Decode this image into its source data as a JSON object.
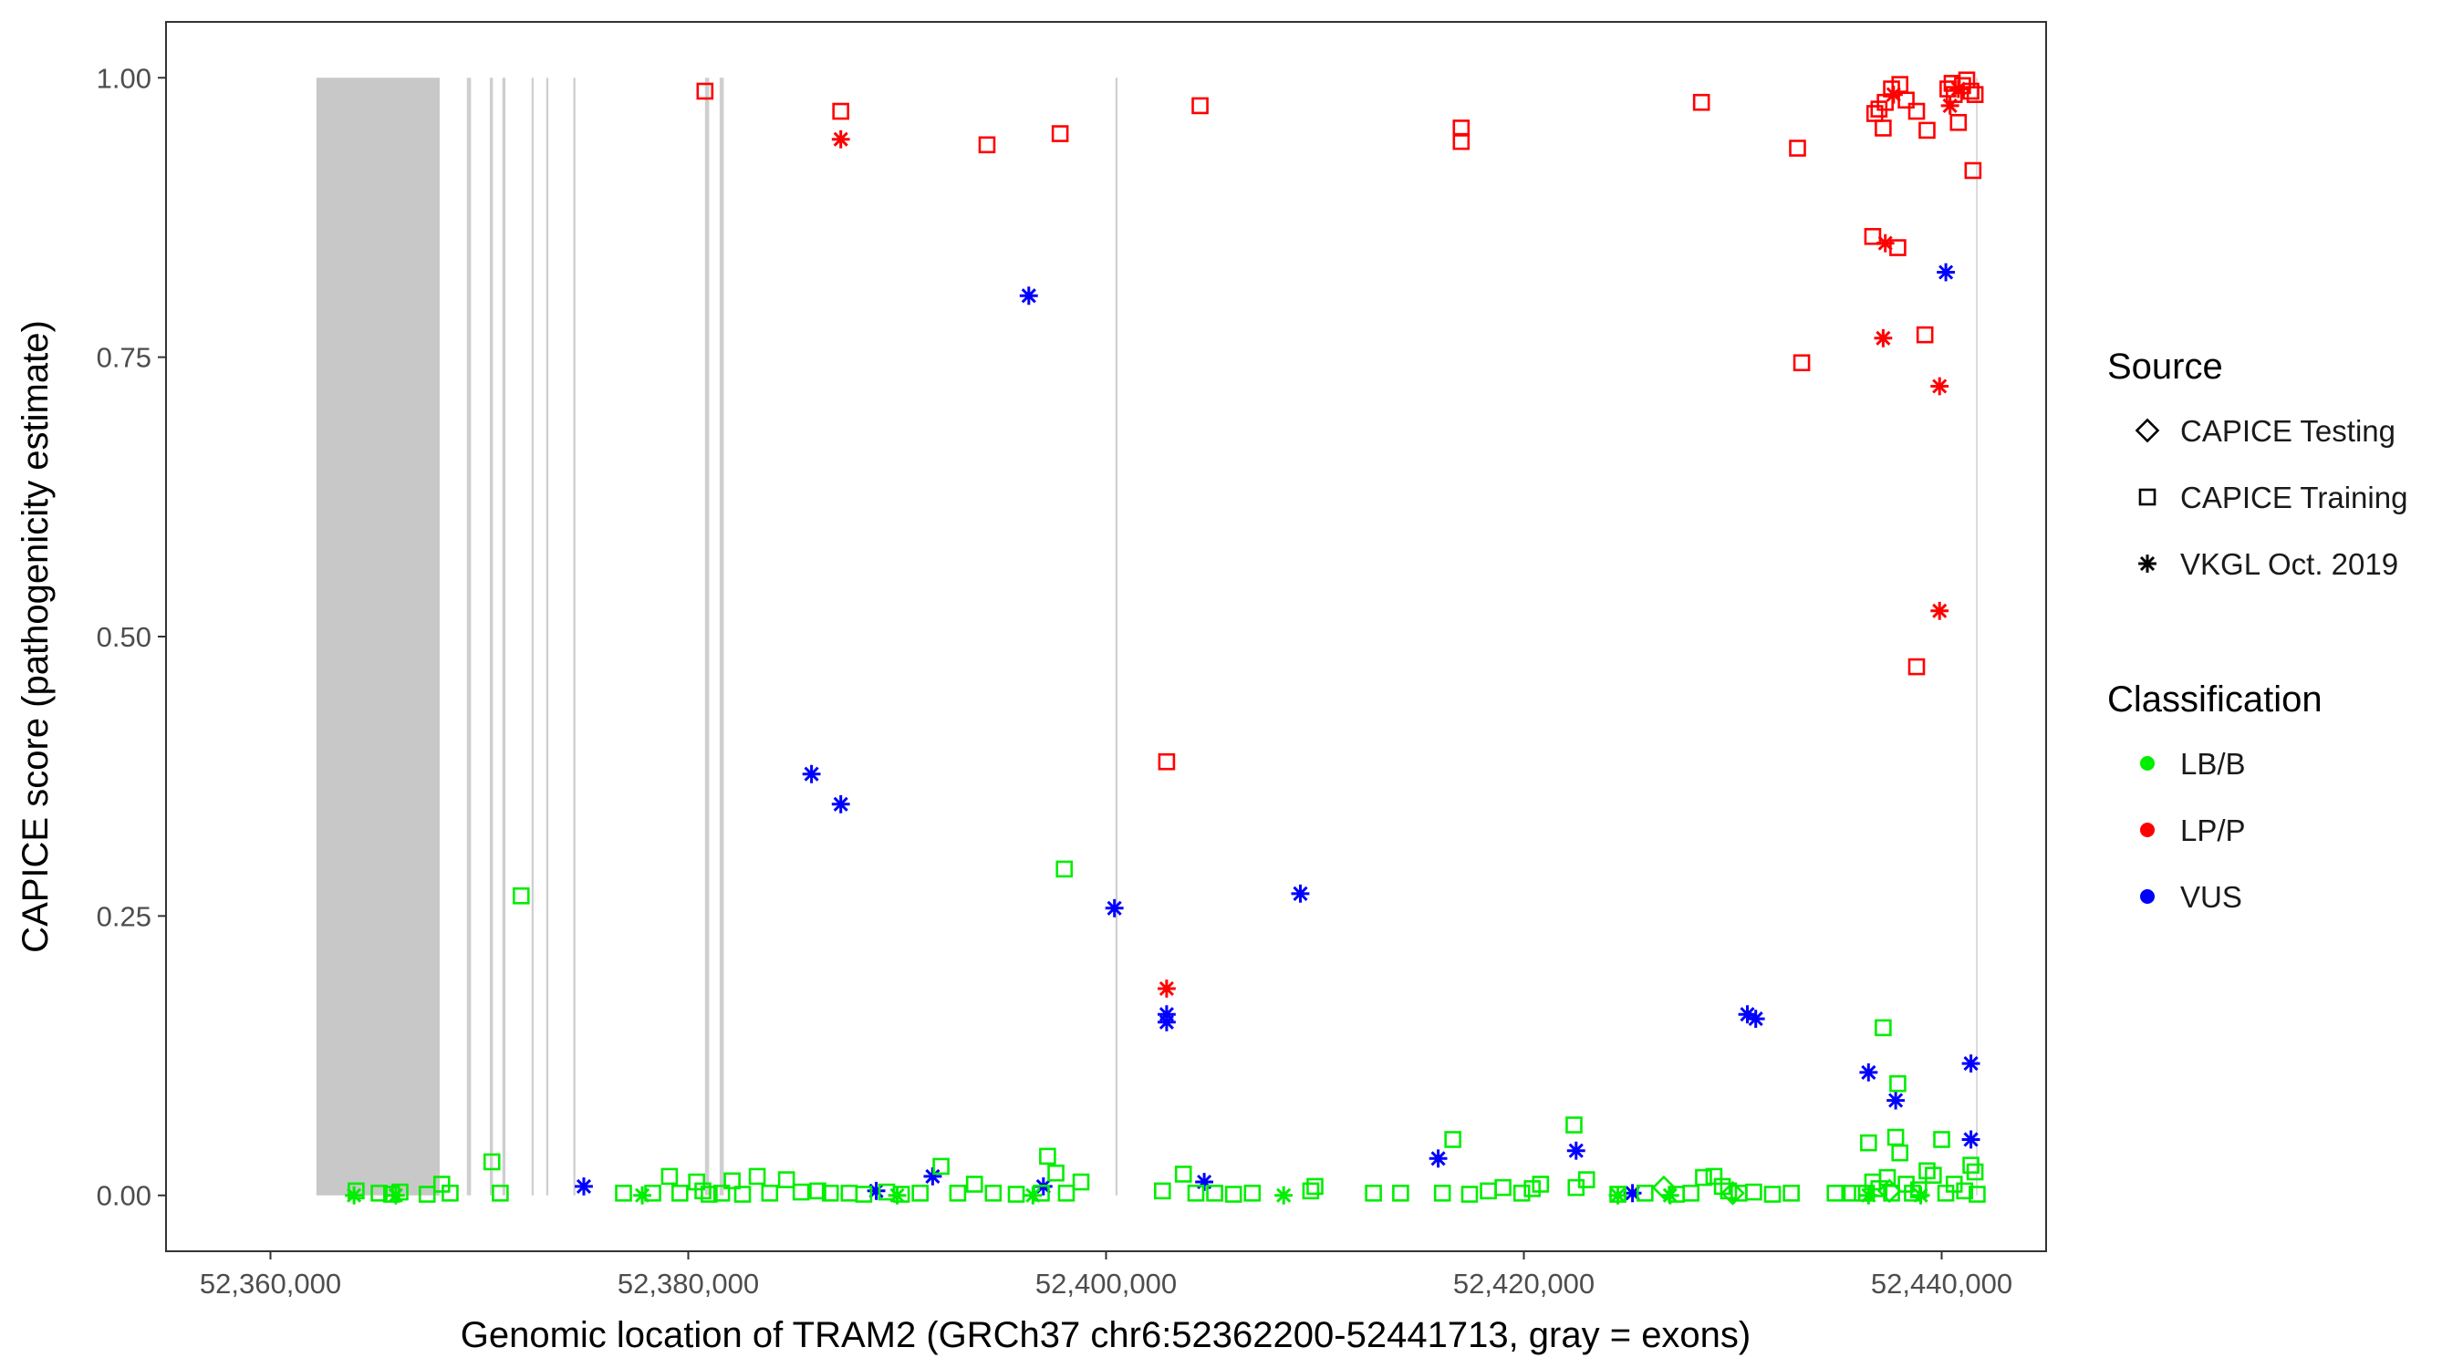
{
  "chart_data": {
    "type": "scatter",
    "title": "",
    "xlabel": "Genomic location of TRAM2 (GRCh37 chr6:52362200-52441713, gray = exons)",
    "ylabel": "CAPICE score (pathogenicity estimate)",
    "xlim": [
      52355000,
      52445000
    ],
    "ylim": [
      -0.05,
      1.05
    ],
    "x_ticks": [
      52360000,
      52380000,
      52400000,
      52420000,
      52440000
    ],
    "x_tick_labels": [
      "52,360,000",
      "52,380,000",
      "52,400,000",
      "52,420,000",
      "52,440,000"
    ],
    "y_ticks": [
      0,
      0.25,
      0.5,
      0.75,
      1
    ],
    "y_tick_labels": [
      "0.00",
      "0.25",
      "0.50",
      "0.75",
      "1.00"
    ],
    "exons": [
      [
        52362200,
        52368100
      ],
      [
        52369400,
        52369600
      ],
      [
        52370500,
        52370650
      ],
      [
        52371100,
        52371250
      ],
      [
        52372500,
        52372600
      ],
      [
        52373200,
        52373300
      ],
      [
        52374500,
        52374600
      ],
      [
        52380800,
        52381000
      ],
      [
        52381500,
        52381700
      ],
      [
        52400450,
        52400550
      ],
      [
        52441650,
        52441713
      ]
    ],
    "classification_colors": {
      "LB/B": "#00ee00",
      "LP/P": "#ff0000",
      "VUS": "#0000ff"
    },
    "legend_position": "right",
    "legend": {
      "source_title": "Source",
      "source_items": [
        {
          "label": "CAPICE Testing",
          "shape": "diamond"
        },
        {
          "label": "CAPICE Training",
          "shape": "square"
        },
        {
          "label": "VKGL Oct. 2019",
          "shape": "star"
        }
      ],
      "class_title": "Classification",
      "class_items": [
        {
          "label": "LB/B",
          "color": "#00ee00"
        },
        {
          "label": "LP/P",
          "color": "#ff0000"
        },
        {
          "label": "VUS",
          "color": "#0000ff"
        }
      ]
    },
    "series": [
      {
        "name": "CAPICE Training LP/P",
        "shape": "square",
        "color": "#ff0000",
        "points": [
          [
            52380800,
            0.988
          ],
          [
            52387300,
            0.97
          ],
          [
            52394300,
            0.94
          ],
          [
            52397800,
            0.95
          ],
          [
            52404500,
            0.975
          ],
          [
            52402900,
            0.388
          ],
          [
            52417000,
            0.955
          ],
          [
            52417000,
            0.943
          ],
          [
            52428500,
            0.978
          ],
          [
            52433100,
            0.937
          ],
          [
            52433300,
            0.745
          ],
          [
            52436700,
            0.858
          ],
          [
            52437900,
            0.848
          ],
          [
            52436800,
            0.968
          ],
          [
            52437200,
            0.955
          ],
          [
            52437300,
            0.978
          ],
          [
            52437600,
            0.99
          ],
          [
            52438000,
            0.994
          ],
          [
            52438300,
            0.98
          ],
          [
            52438800,
            0.97
          ],
          [
            52439300,
            0.953
          ],
          [
            52439200,
            0.77
          ],
          [
            52438800,
            0.473
          ],
          [
            52440300,
            0.99
          ],
          [
            52440600,
            0.985
          ],
          [
            52440800,
            0.96
          ],
          [
            52441000,
            0.993
          ],
          [
            52441200,
            0.998
          ],
          [
            52441400,
            0.988
          ],
          [
            52441500,
            0.917
          ],
          [
            52441600,
            0.985
          ],
          [
            52437000,
            0.972
          ],
          [
            52440500,
            0.995
          ]
        ]
      },
      {
        "name": "VKGL Oct. 2019 LP/P",
        "shape": "star",
        "color": "#ff0000",
        "points": [
          [
            52387300,
            0.945
          ],
          [
            52402900,
            0.185
          ],
          [
            52437300,
            0.852
          ],
          [
            52437200,
            0.767
          ],
          [
            52439900,
            0.724
          ],
          [
            52439900,
            0.523
          ],
          [
            52437700,
            0.985
          ],
          [
            52440400,
            0.975
          ],
          [
            52440800,
            0.99
          ]
        ]
      },
      {
        "name": "VKGL Oct. 2019 VUS",
        "shape": "star",
        "color": "#0000ff",
        "points": [
          [
            52375000,
            0.008
          ],
          [
            52385900,
            0.377
          ],
          [
            52387300,
            0.35
          ],
          [
            52389000,
            0.004
          ],
          [
            52391700,
            0.017
          ],
          [
            52396300,
            0.805
          ],
          [
            52397000,
            0.008
          ],
          [
            52400400,
            0.257
          ],
          [
            52402900,
            0.162
          ],
          [
            52402900,
            0.155
          ],
          [
            52404700,
            0.012
          ],
          [
            52409300,
            0.27
          ],
          [
            52415900,
            0.033
          ],
          [
            52422500,
            0.04
          ],
          [
            52425200,
            0.002
          ],
          [
            52430700,
            0.162
          ],
          [
            52431100,
            0.158
          ],
          [
            52436500,
            0.11
          ],
          [
            52437800,
            0.085
          ],
          [
            52440200,
            0.826
          ],
          [
            52441400,
            0.118
          ],
          [
            52441400,
            0.05
          ]
        ]
      },
      {
        "name": "VKGL Oct. 2019 LB/B",
        "shape": "star",
        "color": "#00ee00",
        "points": [
          [
            52364000,
            0.0
          ],
          [
            52366000,
            0.0
          ],
          [
            52377800,
            0.0
          ],
          [
            52390000,
            0.0
          ],
          [
            52396500,
            0.0
          ],
          [
            52408500,
            0.0
          ],
          [
            52424500,
            0.0
          ],
          [
            52427000,
            0.0
          ],
          [
            52436500,
            0.0
          ],
          [
            52439000,
            0.0
          ]
        ]
      },
      {
        "name": "CAPICE Testing LB/B",
        "shape": "diamond",
        "color": "#00ee00",
        "points": [
          [
            52426700,
            0.007
          ],
          [
            52437500,
            0.004
          ],
          [
            52430000,
            0.002
          ]
        ]
      },
      {
        "name": "CAPICE Training LB/B",
        "shape": "square",
        "color": "#00ee00",
        "points": [
          [
            52364100,
            0.004
          ],
          [
            52365200,
            0.002
          ],
          [
            52365800,
            0.001
          ],
          [
            52366200,
            0.003
          ],
          [
            52367500,
            0.001
          ],
          [
            52368200,
            0.01
          ],
          [
            52368600,
            0.002
          ],
          [
            52370600,
            0.03
          ],
          [
            52371000,
            0.002
          ],
          [
            52372000,
            0.268
          ],
          [
            52376900,
            0.002
          ],
          [
            52378300,
            0.002
          ],
          [
            52379100,
            0.017
          ],
          [
            52379600,
            0.002
          ],
          [
            52380400,
            0.012
          ],
          [
            52380700,
            0.004
          ],
          [
            52381000,
            0.001
          ],
          [
            52381600,
            0.002
          ],
          [
            52382100,
            0.013
          ],
          [
            52382600,
            0.001
          ],
          [
            52383300,
            0.017
          ],
          [
            52383900,
            0.002
          ],
          [
            52384700,
            0.014
          ],
          [
            52385400,
            0.003
          ],
          [
            52386200,
            0.004
          ],
          [
            52386800,
            0.002
          ],
          [
            52387700,
            0.002
          ],
          [
            52388400,
            0.001
          ],
          [
            52389500,
            0.003
          ],
          [
            52390200,
            0.001
          ],
          [
            52391100,
            0.002
          ],
          [
            52392100,
            0.026
          ],
          [
            52392900,
            0.002
          ],
          [
            52393700,
            0.01
          ],
          [
            52394600,
            0.002
          ],
          [
            52395700,
            0.001
          ],
          [
            52396900,
            0.002
          ],
          [
            52397200,
            0.035
          ],
          [
            52397600,
            0.02
          ],
          [
            52398100,
            0.002
          ],
          [
            52398800,
            0.012
          ],
          [
            52398000,
            0.292
          ],
          [
            52402700,
            0.004
          ],
          [
            52403700,
            0.019
          ],
          [
            52404300,
            0.002
          ],
          [
            52405200,
            0.002
          ],
          [
            52406100,
            0.001
          ],
          [
            52407000,
            0.002
          ],
          [
            52409800,
            0.004
          ],
          [
            52410000,
            0.008
          ],
          [
            52412800,
            0.002
          ],
          [
            52414100,
            0.002
          ],
          [
            52416100,
            0.002
          ],
          [
            52416600,
            0.05
          ],
          [
            52417400,
            0.001
          ],
          [
            52418300,
            0.004
          ],
          [
            52419000,
            0.007
          ],
          [
            52419900,
            0.002
          ],
          [
            52420400,
            0.006
          ],
          [
            52420800,
            0.01
          ],
          [
            52422400,
            0.063
          ],
          [
            52422500,
            0.007
          ],
          [
            52423000,
            0.014
          ],
          [
            52424500,
            0.001
          ],
          [
            52425800,
            0.002
          ],
          [
            52427300,
            0.001
          ],
          [
            52428000,
            0.002
          ],
          [
            52428600,
            0.016
          ],
          [
            52429100,
            0.017
          ],
          [
            52429500,
            0.008
          ],
          [
            52429800,
            0.004
          ],
          [
            52430300,
            0.002
          ],
          [
            52431000,
            0.003
          ],
          [
            52431900,
            0.001
          ],
          [
            52432800,
            0.002
          ],
          [
            52434900,
            0.002
          ],
          [
            52435700,
            0.002
          ],
          [
            52436200,
            0.002
          ],
          [
            52436500,
            0.047
          ],
          [
            52436700,
            0.012
          ],
          [
            52437000,
            0.006
          ],
          [
            52437200,
            0.15
          ],
          [
            52437400,
            0.016
          ],
          [
            52437800,
            0.052
          ],
          [
            52437900,
            0.1
          ],
          [
            52438000,
            0.038
          ],
          [
            52438300,
            0.01
          ],
          [
            52438600,
            0.002
          ],
          [
            52438900,
            0.005
          ],
          [
            52439300,
            0.022
          ],
          [
            52439600,
            0.018
          ],
          [
            52440000,
            0.05
          ],
          [
            52440200,
            0.002
          ],
          [
            52440600,
            0.01
          ],
          [
            52441100,
            0.004
          ],
          [
            52441400,
            0.027
          ],
          [
            52441600,
            0.021
          ],
          [
            52441700,
            0.001
          ],
          [
            52436400,
            0.002
          ],
          [
            52437600,
            0.002
          ]
        ]
      }
    ]
  }
}
